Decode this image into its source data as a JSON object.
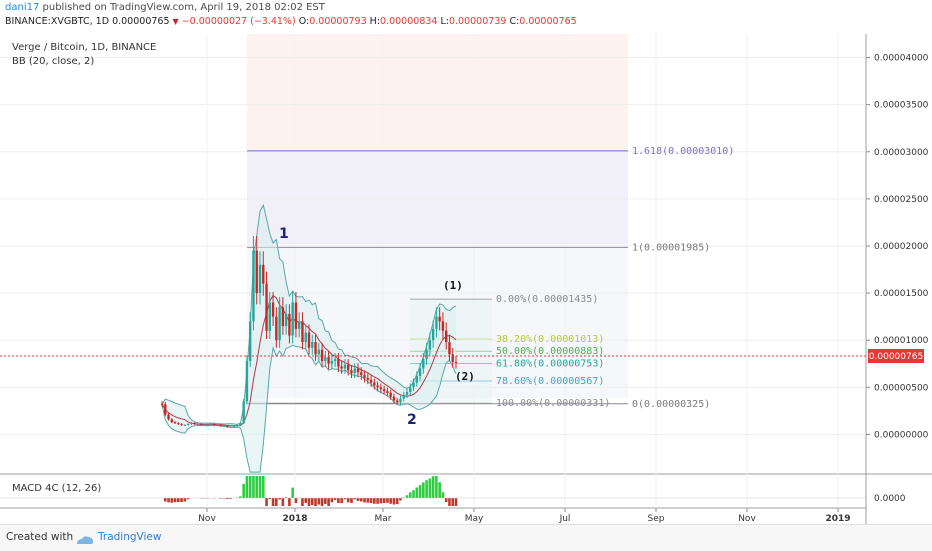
{
  "header": {
    "user": "dani17",
    "published": "published on TradingView.com, April 19, 2018 02:02 EST",
    "symbol": "BINANCE:XVGBTC, 1D",
    "last": "0.00000765",
    "change": "−0.00000027 (−3.41%)",
    "o_label": "O:",
    "o_value": "0.00000793",
    "h_label": "H:",
    "h_value": "0.00000834",
    "l_label": "L:",
    "l_value": "0.00000739",
    "c_label": "C:",
    "c_value": "0.00000765"
  },
  "footer": {
    "created": "Created with",
    "brand": "TradingView"
  },
  "colors": {
    "up": "#26a69a",
    "down": "#c62828",
    "band": "#5aa7a7",
    "price_line": "#e53935",
    "macd_up": "#2ecc40",
    "macd_down": "#c0392b",
    "fib_ext": "#7b6fc9"
  },
  "chart_data": {
    "type": "candlestick",
    "title": "Verge / Bitcoin, 1D, BINANCE",
    "indicator_label": "BB (20, close, 2)",
    "macd_label": "MACD 4C (12, 26)",
    "x_ticks": [
      "Nov",
      "2018",
      "Mar",
      "May",
      "Jul",
      "Sep",
      "Nov",
      "2019"
    ],
    "y_ticks": [
      "0.00004000",
      "0.00003500",
      "0.00003000",
      "0.00002500",
      "0.00002000",
      "0.00001500",
      "0.00001000",
      "0.00000500",
      "0.00000000"
    ],
    "ylim": [
      -4.2e-06,
      4.25e-05
    ],
    "macd_tick": "0.0000",
    "current_price": "0.00000765",
    "annotations": [
      "1",
      "2",
      "(1)",
      "(2)"
    ],
    "fib_extension": [
      {
        "label": "1.618(0.00003010)",
        "value": 3.01e-05
      },
      {
        "label": "1(0.00001985)",
        "value": 1.985e-05
      },
      {
        "label": "0(0.00000325)",
        "value": 3.25e-06
      }
    ],
    "fib_retracement": [
      {
        "label": "0.00%(0.00001435)",
        "value": 1.435e-05,
        "color": "#8a8a8a"
      },
      {
        "label": "38.20%(0.00001013)",
        "value": 1.013e-05,
        "color": "#b5c93a"
      },
      {
        "label": "50.00%(0.00000883)",
        "value": 8.83e-06,
        "color": "#4caf50"
      },
      {
        "label": "61.80%(0.00000753)",
        "value": 7.53e-06,
        "color": "#26a69a"
      },
      {
        "label": "78.60%(0.00000567)",
        "value": 5.67e-06,
        "color": "#42a5c8"
      },
      {
        "label": "100.00%(0.00000331)",
        "value": 3.31e-06,
        "color": "#8a8a8a"
      }
    ],
    "close_series": [
      3.2e-06,
      2.1e-06,
      1.6e-06,
      1.3e-06,
      1.2e-06,
      1.1e-06,
      1e-06,
      1e-06,
      1.1e-06,
      1.2e-06,
      1.1e-06,
      1.1e-06,
      1e-06,
      1e-06,
      1e-06,
      1.1e-06,
      1e-06,
      1e-06,
      9e-07,
      9e-07,
      8e-07,
      8e-07,
      9e-07,
      1e-06,
      1.2e-06,
      3.5e-06,
      7.8e-06,
      1.2e-05,
      1.95e-05,
      1.5e-05,
      1.8e-05,
      1.6e-05,
      1.1e-05,
      1.4e-05,
      1.25e-05,
      1e-05,
      1.35e-05,
      1.15e-05,
      1.28e-05,
      1.05e-05,
      1.4e-05,
      1.12e-05,
      1.2e-05,
      9.8e-06,
      1.08e-05,
      9.2e-06,
      9.8e-06,
      8.5e-06,
      9e-06,
      7.8e-06,
      8.2e-06,
      7.5e-06,
      7.8e-06,
      8e-06,
      7.2e-06,
      7e-06,
      7.4e-06,
      6.8e-06,
      6.5e-06,
      7e-06,
      6.6e-06,
      6.3e-06,
      6e-06,
      5.8e-06,
      5.5e-06,
      5.2e-06,
      5e-06,
      4.8e-06,
      4.6e-06,
      4.4e-06,
      4e-06,
      3.6e-06,
      3.4e-06,
      3.8e-06,
      4.2e-06,
      4.5e-06,
      5e-06,
      5.5e-06,
      6.2e-06,
      7e-06,
      8e-06,
      9e-06,
      1e-05,
      1.12e-05,
      1.25e-05,
      1.2e-05,
      1.1e-05,
      9.8e-06,
      8.5e-06,
      7.7e-06,
      7.6e-06
    ]
  }
}
